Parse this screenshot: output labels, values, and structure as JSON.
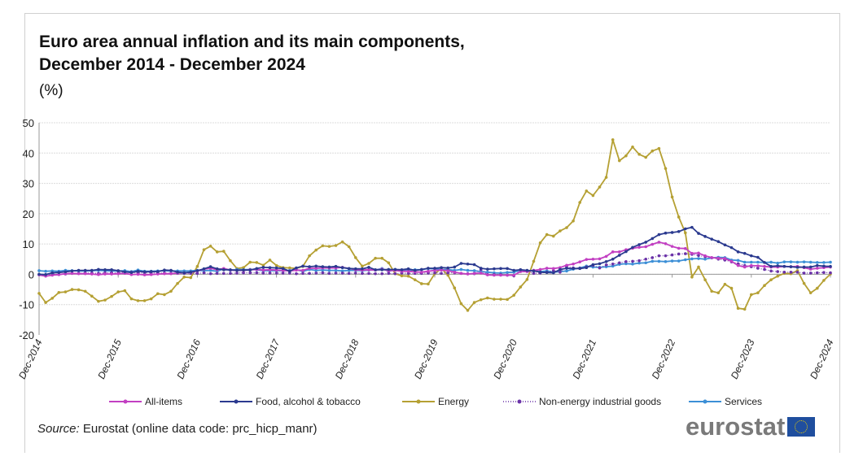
{
  "chart_data": {
    "type": "line",
    "title_line1": "Euro area annual inflation and its main components,",
    "title_line2": "December 2014 - December 2024",
    "ylabel": "(%)",
    "xlabel": "",
    "ylim": [
      -20,
      50
    ],
    "yticks": [
      -20,
      -10,
      0,
      10,
      20,
      30,
      40,
      50
    ],
    "grid": true,
    "legend_position": "bottom",
    "x_start": "Dec-2014",
    "x_end": "Dec-2024",
    "frequency": "monthly",
    "xtick_labels": [
      "Dec-2014",
      "Dec-2015",
      "Dec-2016",
      "Dec-2017",
      "Dec-2018",
      "Dec-2019",
      "Dec-2020",
      "Dec-2021",
      "Dec-2022",
      "Dec-2023",
      "Dec-2024"
    ],
    "series": [
      {
        "name": "All-items",
        "color": "#c23fc2",
        "style": "solid",
        "marker": "square",
        "values": [
          -0.2,
          -0.6,
          -0.3,
          -0.1,
          0.2,
          0.3,
          0.2,
          0.2,
          0.1,
          -0.1,
          0.1,
          0.1,
          0.2,
          0.3,
          -0.1,
          0.0,
          -0.2,
          -0.1,
          0.1,
          0.2,
          0.2,
          0.4,
          0.5,
          0.6,
          1.1,
          1.7,
          2.0,
          1.5,
          1.9,
          1.4,
          1.3,
          1.3,
          1.5,
          1.6,
          1.4,
          1.5,
          1.4,
          1.3,
          1.1,
          1.4,
          1.3,
          2.0,
          2.0,
          2.1,
          2.1,
          2.1,
          2.3,
          1.9,
          1.5,
          1.4,
          1.5,
          1.4,
          1.7,
          1.2,
          1.3,
          1.0,
          1.0,
          0.8,
          0.7,
          1.0,
          1.3,
          1.4,
          1.2,
          0.7,
          0.3,
          0.1,
          0.3,
          0.4,
          -0.2,
          -0.3,
          -0.3,
          -0.3,
          -0.3,
          0.9,
          0.9,
          1.3,
          1.6,
          2.0,
          1.9,
          2.2,
          3.0,
          3.4,
          4.1,
          4.9,
          5.0,
          5.1,
          5.9,
          7.4,
          7.4,
          8.1,
          8.6,
          8.9,
          9.1,
          9.9,
          10.6,
          10.1,
          9.2,
          8.6,
          8.5,
          6.9,
          7.0,
          6.1,
          5.5,
          5.3,
          5.2,
          4.3,
          2.9,
          2.4,
          2.9,
          2.8,
          2.6,
          2.4,
          2.4,
          2.6,
          2.5,
          2.6,
          2.2,
          1.7,
          2.0,
          2.2,
          2.4
        ]
      },
      {
        "name": "Food, alcohol & tobacco",
        "color": "#2b3a8f",
        "style": "solid",
        "marker": "triangle",
        "values": [
          0.0,
          -0.1,
          0.5,
          0.6,
          0.8,
          1.1,
          1.3,
          1.3,
          1.3,
          1.6,
          1.5,
          1.5,
          1.2,
          0.8,
          0.6,
          1.0,
          0.8,
          0.9,
          0.9,
          1.4,
          1.3,
          0.7,
          0.5,
          0.7,
          1.2,
          1.8,
          2.5,
          1.8,
          1.5,
          1.5,
          1.3,
          1.4,
          1.4,
          1.9,
          2.3,
          2.2,
          2.1,
          1.9,
          1.0,
          2.1,
          2.7,
          2.5,
          2.7,
          2.5,
          2.4,
          2.6,
          2.2,
          1.9,
          1.8,
          1.8,
          2.3,
          1.5,
          1.5,
          1.6,
          1.6,
          1.5,
          1.8,
          1.3,
          1.6,
          2.0,
          2.0,
          2.2,
          2.1,
          2.4,
          3.6,
          3.4,
          3.2,
          2.0,
          1.7,
          1.8,
          1.9,
          1.9,
          1.3,
          1.5,
          1.3,
          1.1,
          0.7,
          0.6,
          0.5,
          1.6,
          2.0,
          1.9,
          1.9,
          2.2,
          3.2,
          3.5,
          4.2,
          5.0,
          6.3,
          7.5,
          8.9,
          9.8,
          10.6,
          11.8,
          13.1,
          13.6,
          13.8,
          14.1,
          15.0,
          15.5,
          13.5,
          12.5,
          11.6,
          10.8,
          9.7,
          8.8,
          7.4,
          6.9,
          6.1,
          5.6,
          3.9,
          2.6,
          2.8,
          2.6,
          2.5,
          2.3,
          2.4,
          2.4,
          2.9,
          2.7,
          2.6
        ]
      },
      {
        "name": "Energy",
        "color": "#b5a033",
        "style": "solid",
        "marker": "triangle",
        "values": [
          -6.3,
          -9.3,
          -7.9,
          -6.0,
          -5.8,
          -5.0,
          -5.1,
          -5.6,
          -7.2,
          -8.9,
          -8.5,
          -7.3,
          -5.8,
          -5.4,
          -8.1,
          -8.7,
          -8.7,
          -8.1,
          -6.4,
          -6.7,
          -5.6,
          -3.0,
          -0.9,
          -1.1,
          2.6,
          8.1,
          9.3,
          7.4,
          7.6,
          4.5,
          1.9,
          2.2,
          4.0,
          3.9,
          3.0,
          4.7,
          2.9,
          2.2,
          2.1,
          2.0,
          2.6,
          6.1,
          8.0,
          9.4,
          9.2,
          9.5,
          10.7,
          9.1,
          5.5,
          2.7,
          3.6,
          5.3,
          5.3,
          3.8,
          0.2,
          -0.5,
          -0.6,
          -1.8,
          -3.1,
          -3.2,
          0.2,
          1.9,
          -0.3,
          -4.5,
          -9.7,
          -11.9,
          -9.3,
          -8.4,
          -7.8,
          -8.2,
          -8.2,
          -8.3,
          -6.9,
          -4.2,
          -1.7,
          4.3,
          10.4,
          13.1,
          12.6,
          14.3,
          15.4,
          17.6,
          23.7,
          27.5,
          26.0,
          28.8,
          32.0,
          44.4,
          37.5,
          39.1,
          42.0,
          39.6,
          38.6,
          40.7,
          41.5,
          34.9,
          25.5,
          18.9,
          13.7,
          -0.9,
          2.4,
          -1.8,
          -5.6,
          -6.1,
          -3.3,
          -4.6,
          -11.2,
          -11.5,
          -6.7,
          -6.1,
          -3.7,
          -1.8,
          -0.6,
          0.3,
          0.2,
          1.2,
          -3.0,
          -6.1,
          -4.6,
          -2.0,
          0.1
        ]
      },
      {
        "name": "Non-energy industrial goods",
        "color": "#6a32a8",
        "style": "dotted",
        "marker": "diamond",
        "values": [
          -0.1,
          -0.1,
          0.1,
          -0.1,
          0.1,
          0.3,
          0.3,
          0.4,
          0.4,
          0.3,
          0.5,
          0.5,
          0.5,
          0.7,
          0.7,
          0.5,
          0.5,
          0.5,
          0.4,
          0.4,
          0.3,
          0.3,
          0.3,
          0.3,
          0.3,
          0.5,
          0.2,
          0.3,
          0.3,
          0.3,
          0.4,
          0.5,
          0.5,
          0.5,
          0.4,
          0.4,
          0.4,
          0.4,
          0.4,
          0.2,
          0.3,
          0.3,
          0.4,
          0.5,
          0.3,
          0.4,
          0.4,
          0.3,
          0.4,
          0.3,
          0.3,
          0.2,
          0.2,
          0.3,
          0.2,
          0.4,
          0.3,
          0.3,
          0.3,
          0.4,
          0.5,
          0.3,
          0.5,
          0.5,
          0.3,
          0.2,
          0.2,
          1.6,
          -0.1,
          -0.1,
          -0.1,
          -0.3,
          -0.5,
          1.5,
          1.0,
          0.3,
          0.4,
          0.7,
          1.2,
          0.7,
          2.6,
          2.1,
          2.0,
          2.4,
          2.9,
          2.1,
          3.1,
          3.4,
          3.8,
          4.2,
          4.3,
          4.5,
          5.0,
          5.5,
          6.1,
          6.1,
          6.4,
          6.7,
          6.8,
          6.6,
          6.2,
          5.8,
          5.5,
          5.0,
          4.7,
          4.1,
          3.5,
          2.9,
          2.5,
          2.0,
          1.6,
          1.1,
          0.9,
          0.7,
          0.7,
          0.7,
          0.4,
          0.4,
          0.5,
          0.6,
          0.5
        ]
      },
      {
        "name": "Services",
        "color": "#3c8fd6",
        "style": "solid",
        "marker": "diamond",
        "values": [
          1.2,
          1.0,
          1.1,
          1.0,
          1.3,
          1.2,
          1.1,
          1.1,
          1.2,
          1.3,
          1.2,
          1.1,
          1.1,
          1.2,
          0.9,
          1.4,
          1.0,
          1.0,
          1.1,
          1.2,
          1.1,
          1.1,
          1.1,
          1.1,
          1.3,
          1.2,
          1.3,
          1.0,
          1.8,
          1.3,
          1.6,
          1.5,
          1.6,
          1.5,
          1.2,
          1.2,
          1.2,
          1.2,
          1.3,
          1.5,
          1.0,
          1.6,
          1.3,
          1.4,
          1.3,
          1.3,
          1.1,
          1.3,
          1.3,
          1.2,
          1.4,
          1.4,
          1.9,
          1.0,
          1.6,
          1.2,
          1.3,
          1.5,
          1.5,
          1.9,
          1.8,
          1.5,
          1.6,
          1.3,
          1.6,
          1.3,
          1.2,
          0.9,
          0.7,
          0.5,
          0.4,
          0.6,
          0.7,
          1.4,
          1.2,
          1.3,
          0.9,
          1.1,
          0.7,
          0.9,
          1.1,
          1.7,
          2.1,
          2.7,
          2.4,
          2.3,
          2.5,
          2.7,
          3.3,
          3.5,
          3.4,
          3.7,
          3.8,
          4.3,
          4.3,
          4.2,
          4.4,
          4.4,
          4.8,
          5.1,
          5.2,
          5.0,
          5.4,
          5.6,
          5.5,
          4.7,
          4.6,
          4.0,
          4.0,
          4.0,
          3.9,
          4.0,
          3.7,
          4.1,
          4.1,
          4.0,
          4.1,
          4.0,
          3.9,
          3.9,
          4.0
        ]
      }
    ],
    "source_label": "Source:",
    "source_text": " Eurostat (online data code: prc_hicp_manr)"
  },
  "logo": {
    "text": "eurostat"
  }
}
